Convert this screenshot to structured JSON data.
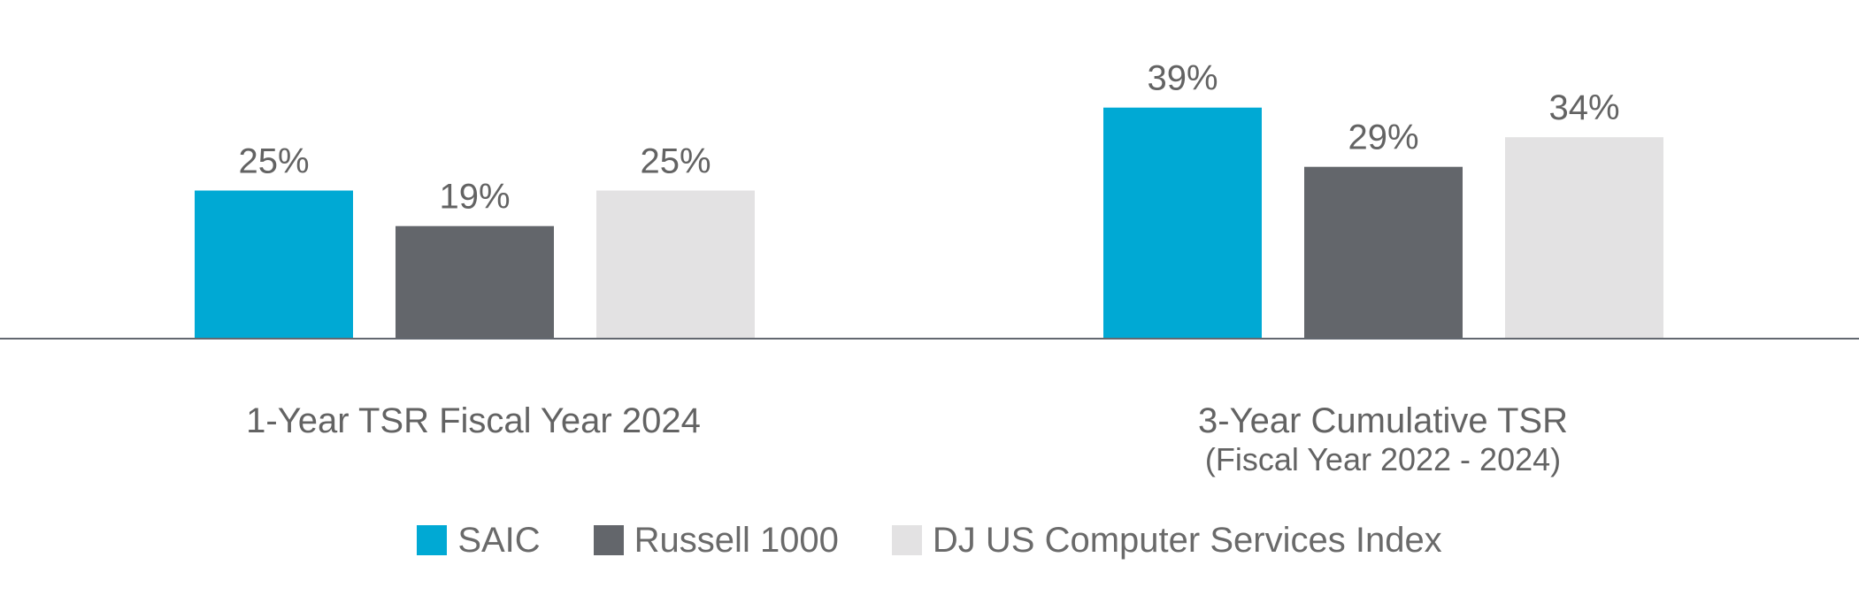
{
  "chart_data": {
    "type": "bar",
    "categories": [
      {
        "title": "1-Year TSR Fiscal Year 2024",
        "subtitle": ""
      },
      {
        "title": "3-Year Cumulative TSR",
        "subtitle": "(Fiscal Year 2022 - 2024)"
      }
    ],
    "series": [
      {
        "name": "SAIC",
        "color": "#00a9d4",
        "values": [
          25,
          39
        ],
        "labels": [
          "25%",
          "39%"
        ]
      },
      {
        "name": "Russell 1000",
        "color": "#63666b",
        "values": [
          19,
          29
        ],
        "labels": [
          "19%",
          "29%"
        ]
      },
      {
        "name": "DJ US Computer Services Index",
        "color": "#e3e2e3",
        "values": [
          25,
          34
        ],
        "labels": [
          "25%",
          "34%"
        ]
      }
    ],
    "ylim": [
      0,
      50
    ],
    "unit": "%",
    "grid": false,
    "legend": "bottom-center"
  },
  "legend": {
    "items": [
      {
        "label": "SAIC",
        "color": "#00a9d4"
      },
      {
        "label": "Russell 1000",
        "color": "#63666b"
      },
      {
        "label": "DJ US Computer Services Index",
        "color": "#e3e2e3"
      }
    ]
  }
}
